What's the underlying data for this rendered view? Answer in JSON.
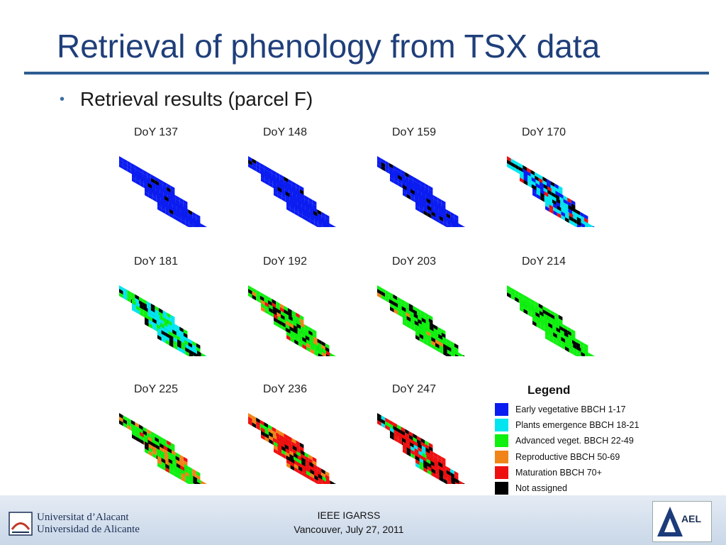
{
  "slide": {
    "title": "Retrieval of phenology from TSX data",
    "bullet": "Retrieval results (parcel F)"
  },
  "colors": {
    "title": "#1f3f7a",
    "rule": "#2e5c91",
    "early_veg": "#0a1cf0",
    "emergence": "#00e5f0",
    "advanced": "#10f010",
    "reproductive": "#f08418",
    "maturation": "#ee1010",
    "not_assigned": "#000000"
  },
  "panels": [
    {
      "label": "DoY 137"
    },
    {
      "label": "DoY 148"
    },
    {
      "label": "DoY 159"
    },
    {
      "label": "DoY 170"
    },
    {
      "label": "DoY 181"
    },
    {
      "label": "DoY 192"
    },
    {
      "label": "DoY 203"
    },
    {
      "label": "DoY 214"
    },
    {
      "label": "DoY 225"
    },
    {
      "label": "DoY 236"
    },
    {
      "label": "DoY 247"
    }
  ],
  "legend": {
    "title": "Legend",
    "items": [
      {
        "label": "Early vegetative BBCH 1-17",
        "color": "#0a1cf0"
      },
      {
        "label": "Plants emergence BBCH 18-21",
        "color": "#00e5f0"
      },
      {
        "label": "Advanced veget. BBCH 22-49",
        "color": "#10f010"
      },
      {
        "label": "Reproductive BBCH 50-69",
        "color": "#f08418"
      },
      {
        "label": "Maturation BBCH 70+",
        "color": "#ee1010"
      },
      {
        "label": "Not assigned",
        "color": "#000000"
      }
    ]
  },
  "footer": {
    "uni_line1": "Universitat d’Alacant",
    "uni_line2": "Universidad de Alicante",
    "conf_line1": "IEEE IGARSS",
    "conf_line2": "Vancouver, July 27, 2011",
    "ael_logo": "AEL"
  }
}
